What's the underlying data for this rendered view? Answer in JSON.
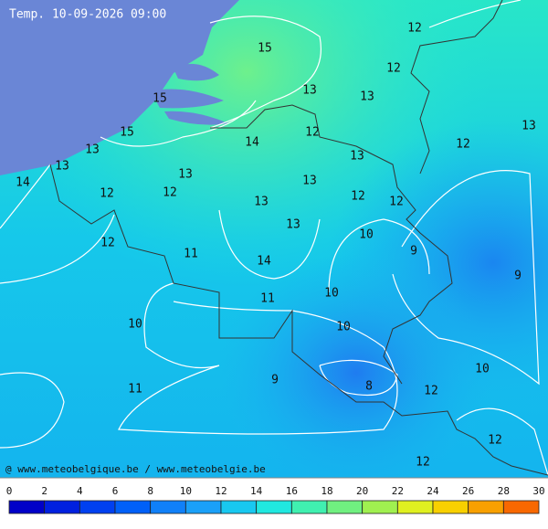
{
  "header": {
    "title": "Temp. 10-09-2026 09:00"
  },
  "credit": "@ www.meteobelgique.be / www.meteobelgie.be",
  "labels": [
    15,
    12,
    12,
    13,
    13,
    15,
    13,
    15,
    14,
    12,
    12,
    13,
    13,
    13,
    13,
    13,
    14,
    12,
    12,
    12,
    12,
    13,
    13,
    10,
    12,
    11,
    9,
    14,
    9,
    11,
    10,
    10,
    10,
    9,
    10,
    8,
    11,
    12,
    12,
    12
  ],
  "colorbar": {
    "ticks": [
      0,
      2,
      4,
      6,
      8,
      10,
      12,
      14,
      16,
      18,
      20,
      22,
      24,
      26,
      28,
      30
    ]
  }
}
